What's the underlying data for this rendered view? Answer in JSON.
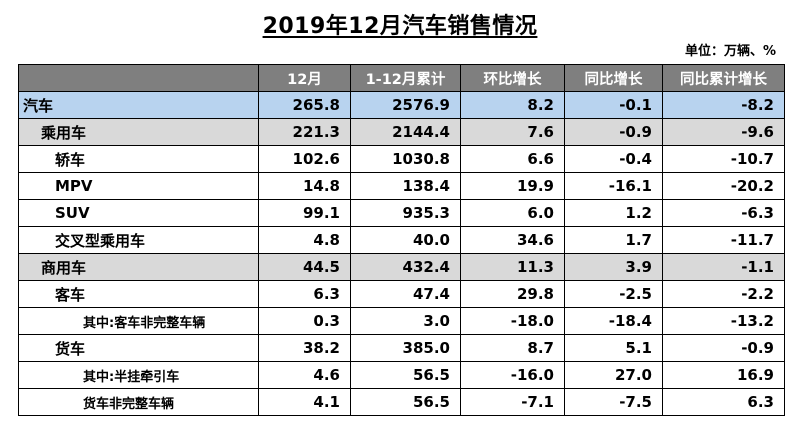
{
  "title": "2019年12月汽车销售情况",
  "unit": "单位：万辆、%",
  "chart_data": {
    "type": "table",
    "columns": [
      "",
      "12月",
      "1-12月累计",
      "环比增长",
      "同比增长",
      "同比累计增长"
    ],
    "rows": [
      {
        "label": "汽车",
        "level": 0,
        "values": [
          "265.8",
          "2576.9",
          "8.2",
          "-0.1",
          "-8.2"
        ]
      },
      {
        "label": "乘用车",
        "level": 1,
        "values": [
          "221.3",
          "2144.4",
          "7.6",
          "-0.9",
          "-9.6"
        ]
      },
      {
        "label": "轿车",
        "level": 2,
        "values": [
          "102.6",
          "1030.8",
          "6.6",
          "-0.4",
          "-10.7"
        ]
      },
      {
        "label": "MPV",
        "level": 2,
        "values": [
          "14.8",
          "138.4",
          "19.9",
          "-16.1",
          "-20.2"
        ]
      },
      {
        "label": "SUV",
        "level": 2,
        "values": [
          "99.1",
          "935.3",
          "6.0",
          "1.2",
          "-6.3"
        ]
      },
      {
        "label": "交叉型乘用车",
        "level": 2,
        "values": [
          "4.8",
          "40.0",
          "34.6",
          "1.7",
          "-11.7"
        ]
      },
      {
        "label": "商用车",
        "level": 1,
        "values": [
          "44.5",
          "432.4",
          "11.3",
          "3.9",
          "-1.1"
        ]
      },
      {
        "label": "客车",
        "level": 2,
        "values": [
          "6.3",
          "47.4",
          "29.8",
          "-2.5",
          "-2.2"
        ]
      },
      {
        "label": "其中:客车非完整车辆",
        "level": 3,
        "values": [
          "0.3",
          "3.0",
          "-18.0",
          "-18.4",
          "-13.2"
        ]
      },
      {
        "label": "货车",
        "level": 2,
        "values": [
          "38.2",
          "385.0",
          "8.7",
          "5.1",
          "-0.9"
        ]
      },
      {
        "label": "其中:半挂牵引车",
        "level": 3,
        "values": [
          "4.6",
          "56.5",
          "-16.0",
          "27.0",
          "16.9"
        ]
      },
      {
        "label": "货车非完整车辆",
        "level": 3,
        "values": [
          "4.1",
          "56.5",
          "-7.1",
          "-7.5",
          "6.3"
        ]
      }
    ]
  },
  "colors": {
    "header_bg": "#7f7f7f",
    "total_row_bg": "#b8d3ef",
    "subtotal_row_bg": "#d9d9d9"
  }
}
